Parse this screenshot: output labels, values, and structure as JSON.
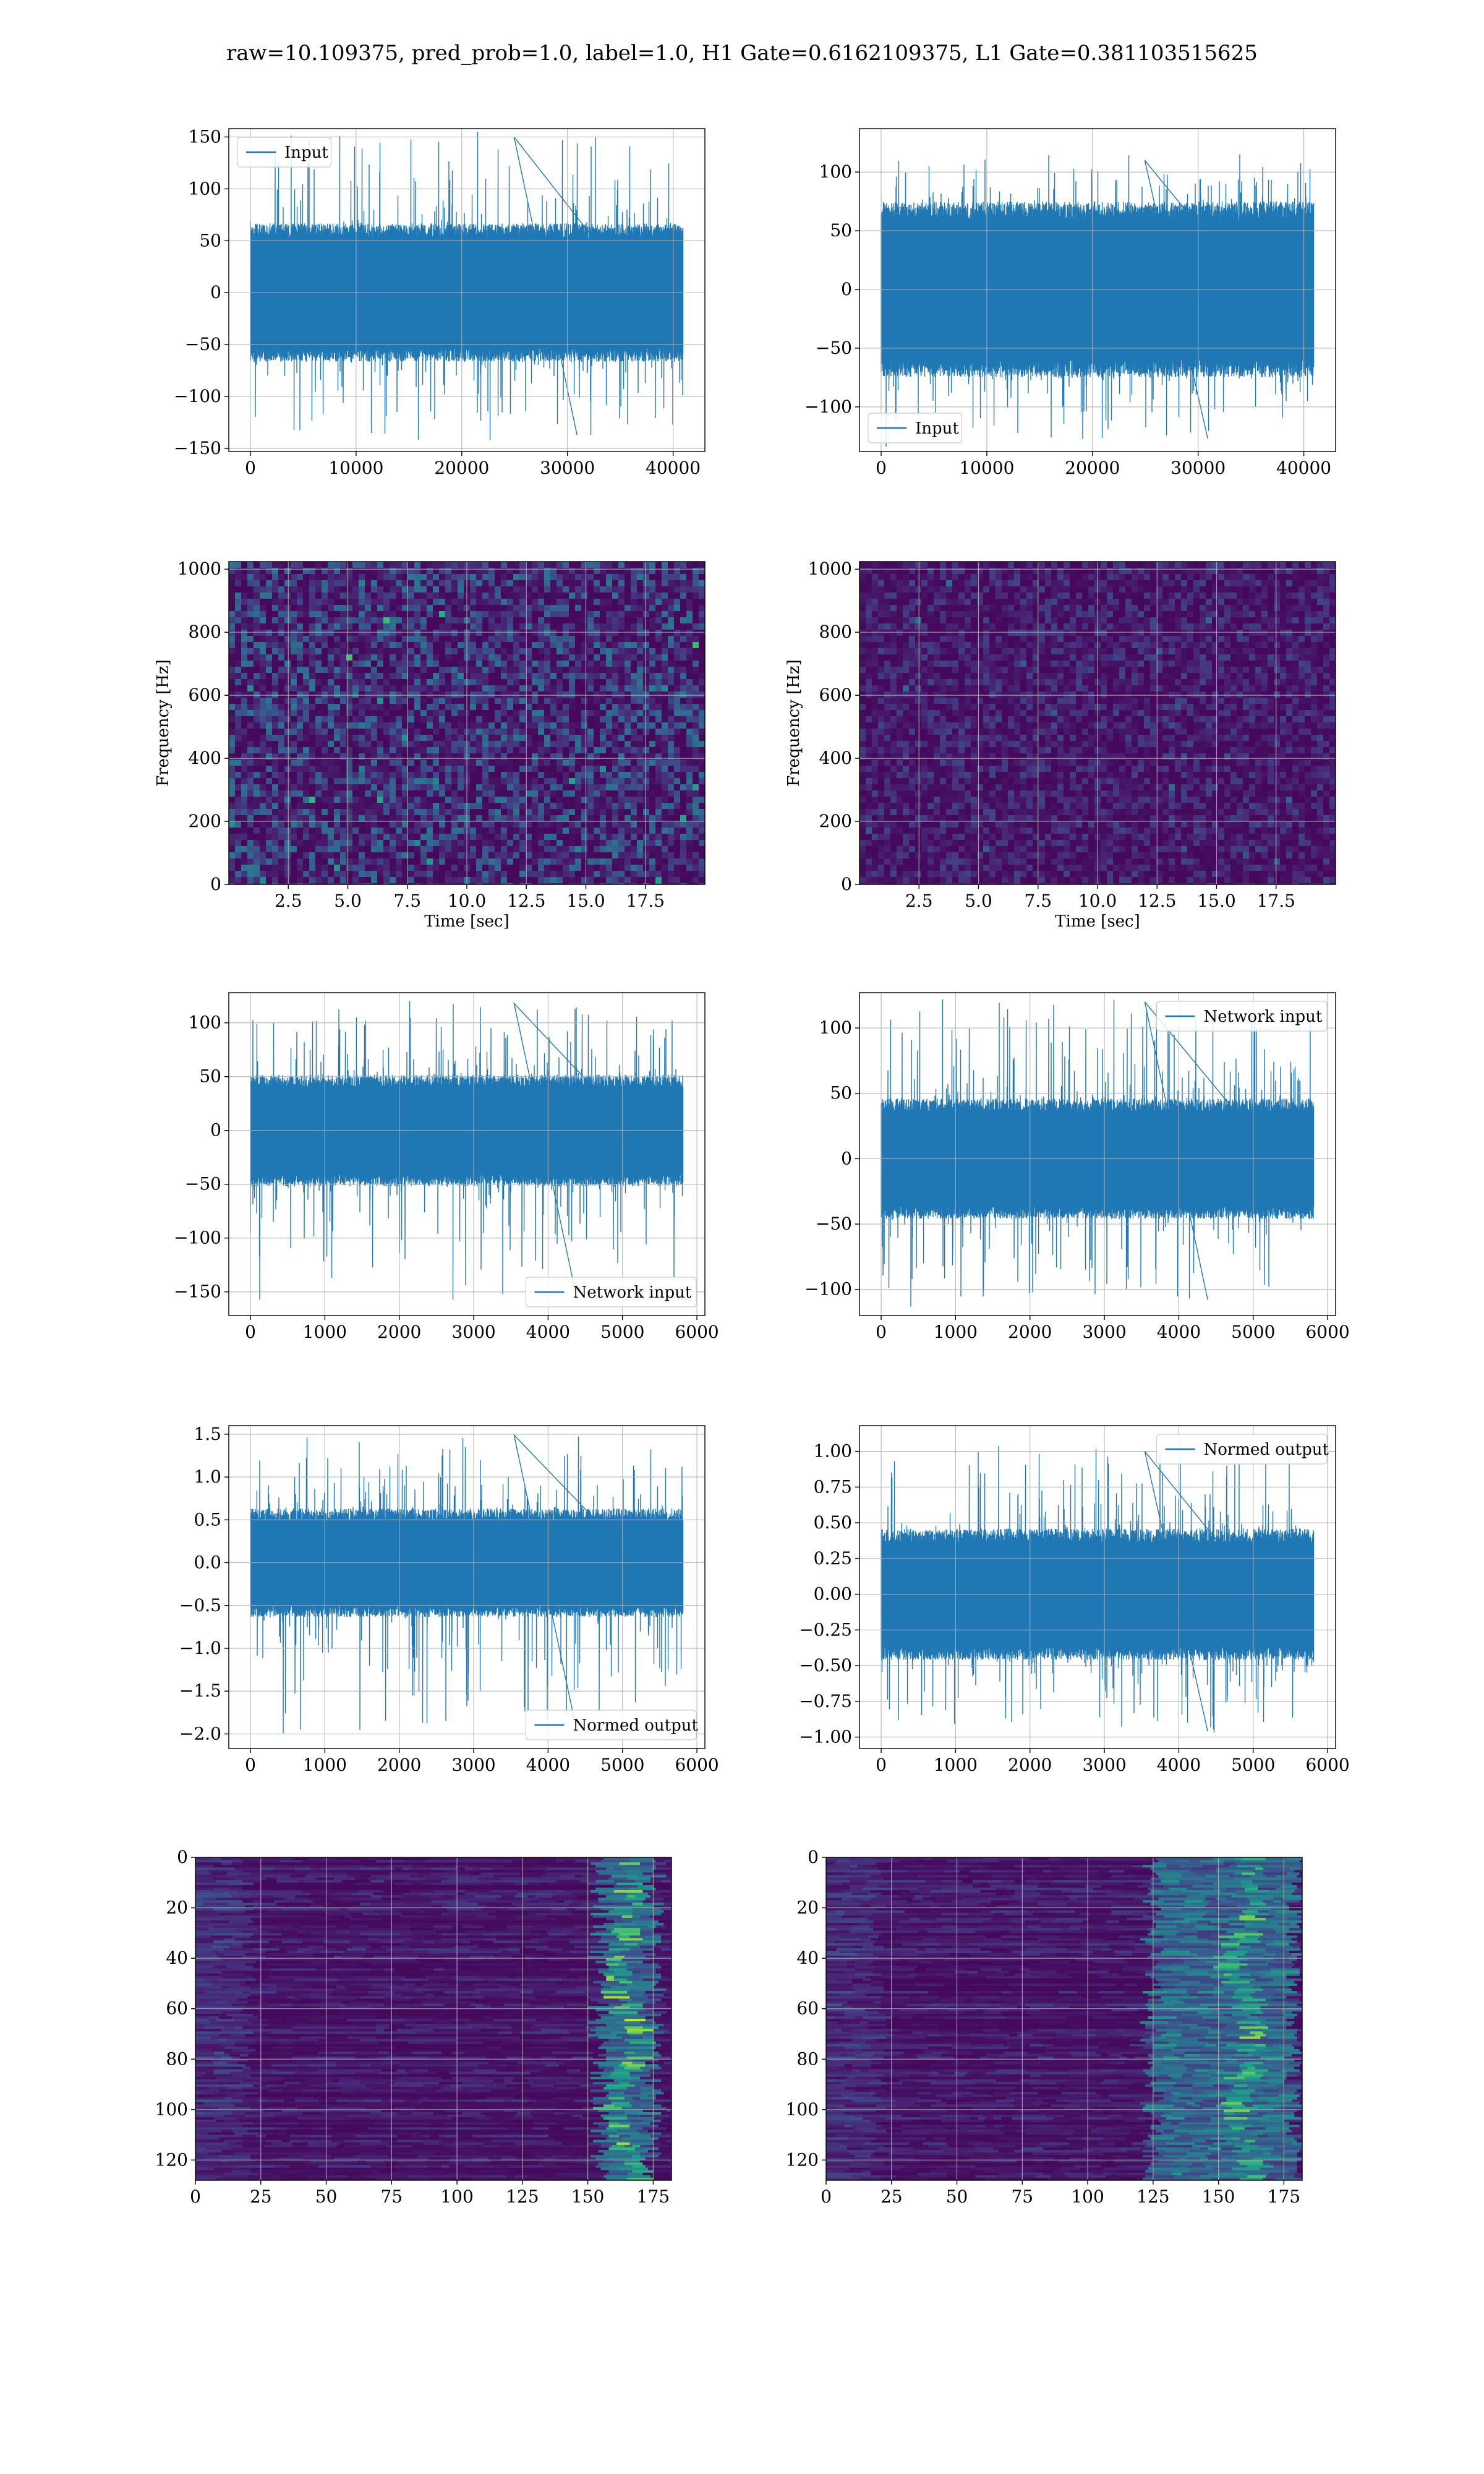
{
  "figure": {
    "title": "raw=10.109375, pred_prob=1.0, label=1.0, H1 Gate=0.6162109375, L1 Gate=0.381103515625",
    "colors": {
      "signal": "#1f77b4",
      "grid": "#b0b0b0",
      "axes": "#000000"
    }
  },
  "chart_data": [
    {
      "id": "raw-h1",
      "type": "line",
      "title": "",
      "xlabel": "",
      "ylabel": "",
      "xlim": [
        -2048,
        43008
      ],
      "ylim": [
        -153,
        158
      ],
      "xticks": [
        0,
        10000,
        20000,
        30000,
        40000
      ],
      "yticks": [
        -150,
        -100,
        -50,
        0,
        50,
        100,
        150
      ],
      "grid": true,
      "legend": {
        "entries": [
          "Input"
        ],
        "placement": "upper left"
      },
      "series": [
        {
          "name": "Input",
          "n": 40960,
          "envelope_core": 58,
          "peak_max": 150,
          "peak_min": -137,
          "color": "#1f77b4"
        }
      ]
    },
    {
      "id": "raw-l1",
      "type": "line",
      "title": "",
      "xlabel": "",
      "ylabel": "",
      "xlim": [
        -2048,
        43008
      ],
      "ylim": [
        -138,
        137
      ],
      "xticks": [
        0,
        10000,
        20000,
        30000,
        40000
      ],
      "yticks": [
        -100,
        -50,
        0,
        50,
        100
      ],
      "grid": true,
      "legend": {
        "entries": [
          "Input"
        ],
        "placement": "lower left"
      },
      "series": [
        {
          "name": "Input",
          "n": 40960,
          "envelope_core": 65,
          "peak_max": 110,
          "peak_min": -127,
          "color": "#1f77b4"
        }
      ]
    },
    {
      "id": "spec-h1",
      "type": "heatmap",
      "title": "",
      "xlabel": "Time [sec]",
      "ylabel": "Frequency [Hz]",
      "xlim": [
        0,
        20
      ],
      "ylim": [
        0,
        1024
      ],
      "xticks": [
        2.5,
        5.0,
        7.5,
        10.0,
        12.5,
        15.0,
        17.5
      ],
      "xticklabels": [
        "2.5",
        "5.0",
        "7.5",
        "10.0",
        "12.5",
        "15.0",
        "17.5"
      ],
      "yticks": [
        0,
        200,
        400,
        600,
        800,
        1000
      ],
      "grid": true,
      "colormap": "viridis",
      "brightness": 0.9
    },
    {
      "id": "spec-l1",
      "type": "heatmap",
      "title": "",
      "xlabel": "Time [sec]",
      "ylabel": "Frequency [Hz]",
      "xlim": [
        0,
        20
      ],
      "ylim": [
        0,
        1024
      ],
      "xticks": [
        2.5,
        5.0,
        7.5,
        10.0,
        12.5,
        15.0,
        17.5
      ],
      "xticklabels": [
        "2.5",
        "5.0",
        "7.5",
        "10.0",
        "12.5",
        "15.0",
        "17.5"
      ],
      "yticks": [
        0,
        200,
        400,
        600,
        800,
        1000
      ],
      "grid": true,
      "colormap": "viridis",
      "brightness": 0.45
    },
    {
      "id": "net-h1",
      "type": "line",
      "title": "",
      "xlabel": "",
      "ylabel": "",
      "xlim": [
        -291,
        6107
      ],
      "ylim": [
        -172,
        128
      ],
      "xticks": [
        0,
        1000,
        2000,
        3000,
        4000,
        5000,
        6000
      ],
      "yticks": [
        -150,
        -100,
        -50,
        0,
        50,
        100
      ],
      "grid": true,
      "legend": {
        "entries": [
          "Network input"
        ],
        "placement": "lower right"
      },
      "series": [
        {
          "name": "Network input",
          "n": 5816,
          "envelope_core": 45,
          "peak_max": 118,
          "peak_min": -157,
          "color": "#1f77b4"
        }
      ]
    },
    {
      "id": "net-l1",
      "type": "line",
      "title": "",
      "xlabel": "",
      "ylabel": "",
      "xlim": [
        -291,
        6107
      ],
      "ylim": [
        -120,
        127
      ],
      "xticks": [
        0,
        1000,
        2000,
        3000,
        4000,
        5000,
        6000
      ],
      "yticks": [
        -100,
        -50,
        0,
        50,
        100
      ],
      "grid": true,
      "legend": {
        "entries": [
          "Network input"
        ],
        "placement": "upper right"
      },
      "series": [
        {
          "name": "Network input",
          "n": 5816,
          "envelope_core": 40,
          "peak_max": 120,
          "peak_min": -108,
          "color": "#1f77b4"
        }
      ]
    },
    {
      "id": "norm-h1",
      "type": "line",
      "title": "",
      "xlabel": "",
      "ylabel": "",
      "xlim": [
        -291,
        6107
      ],
      "ylim": [
        -2.17,
        1.6
      ],
      "xticks": [
        0,
        1000,
        2000,
        3000,
        4000,
        5000,
        6000
      ],
      "yticks": [
        -2.0,
        -1.5,
        -1.0,
        -0.5,
        0.0,
        0.5,
        1.0,
        1.5
      ],
      "yticklabels": [
        "−2.0",
        "−1.5",
        "−1.0",
        "−0.5",
        "0.0",
        "0.5",
        "1.0",
        "1.5"
      ],
      "grid": true,
      "legend": {
        "entries": [
          "Normed output"
        ],
        "placement": "lower right"
      },
      "series": [
        {
          "name": "Normed output",
          "n": 5816,
          "envelope_core": 0.55,
          "peak_max": 1.49,
          "peak_min": -1.98,
          "color": "#1f77b4"
        }
      ]
    },
    {
      "id": "norm-l1",
      "type": "line",
      "title": "",
      "xlabel": "",
      "ylabel": "",
      "xlim": [
        -291,
        6107
      ],
      "ylim": [
        -1.08,
        1.18
      ],
      "xticks": [
        0,
        1000,
        2000,
        3000,
        4000,
        5000,
        6000
      ],
      "yticks": [
        -1.0,
        -0.75,
        -0.5,
        -0.25,
        0.0,
        0.25,
        0.5,
        0.75,
        1.0
      ],
      "yticklabels": [
        "−1.00",
        "−0.75",
        "−0.50",
        "−0.25",
        "0.00",
        "0.25",
        "0.50",
        "0.75",
        "1.00"
      ],
      "grid": true,
      "legend": {
        "entries": [
          "Normed output"
        ],
        "placement": "upper right"
      },
      "series": [
        {
          "name": "Normed output",
          "n": 5816,
          "envelope_core": 0.4,
          "peak_max": 1.0,
          "peak_min": -0.96,
          "color": "#1f77b4"
        }
      ]
    },
    {
      "id": "feat-h1",
      "type": "heatmap",
      "title": "",
      "xlabel": "",
      "ylabel": "",
      "xlim": [
        0,
        182
      ],
      "ylim": [
        128,
        0
      ],
      "xticks": [
        0,
        25,
        50,
        75,
        100,
        125,
        150,
        175
      ],
      "yticks": [
        0,
        20,
        40,
        60,
        80,
        100,
        120
      ],
      "grid": true,
      "colormap": "viridis",
      "hotband": [
        155,
        175
      ],
      "band_center": 165
    },
    {
      "id": "feat-l1",
      "type": "heatmap",
      "title": "",
      "xlabel": "",
      "ylabel": "",
      "xlim": [
        0,
        182
      ],
      "ylim": [
        128,
        0
      ],
      "xticks": [
        0,
        25,
        50,
        75,
        100,
        125,
        150,
        175
      ],
      "yticks": [
        0,
        20,
        40,
        60,
        80,
        100,
        120
      ],
      "grid": true,
      "colormap": "viridis",
      "hotband": [
        125,
        180
      ],
      "band_center": 160
    }
  ]
}
